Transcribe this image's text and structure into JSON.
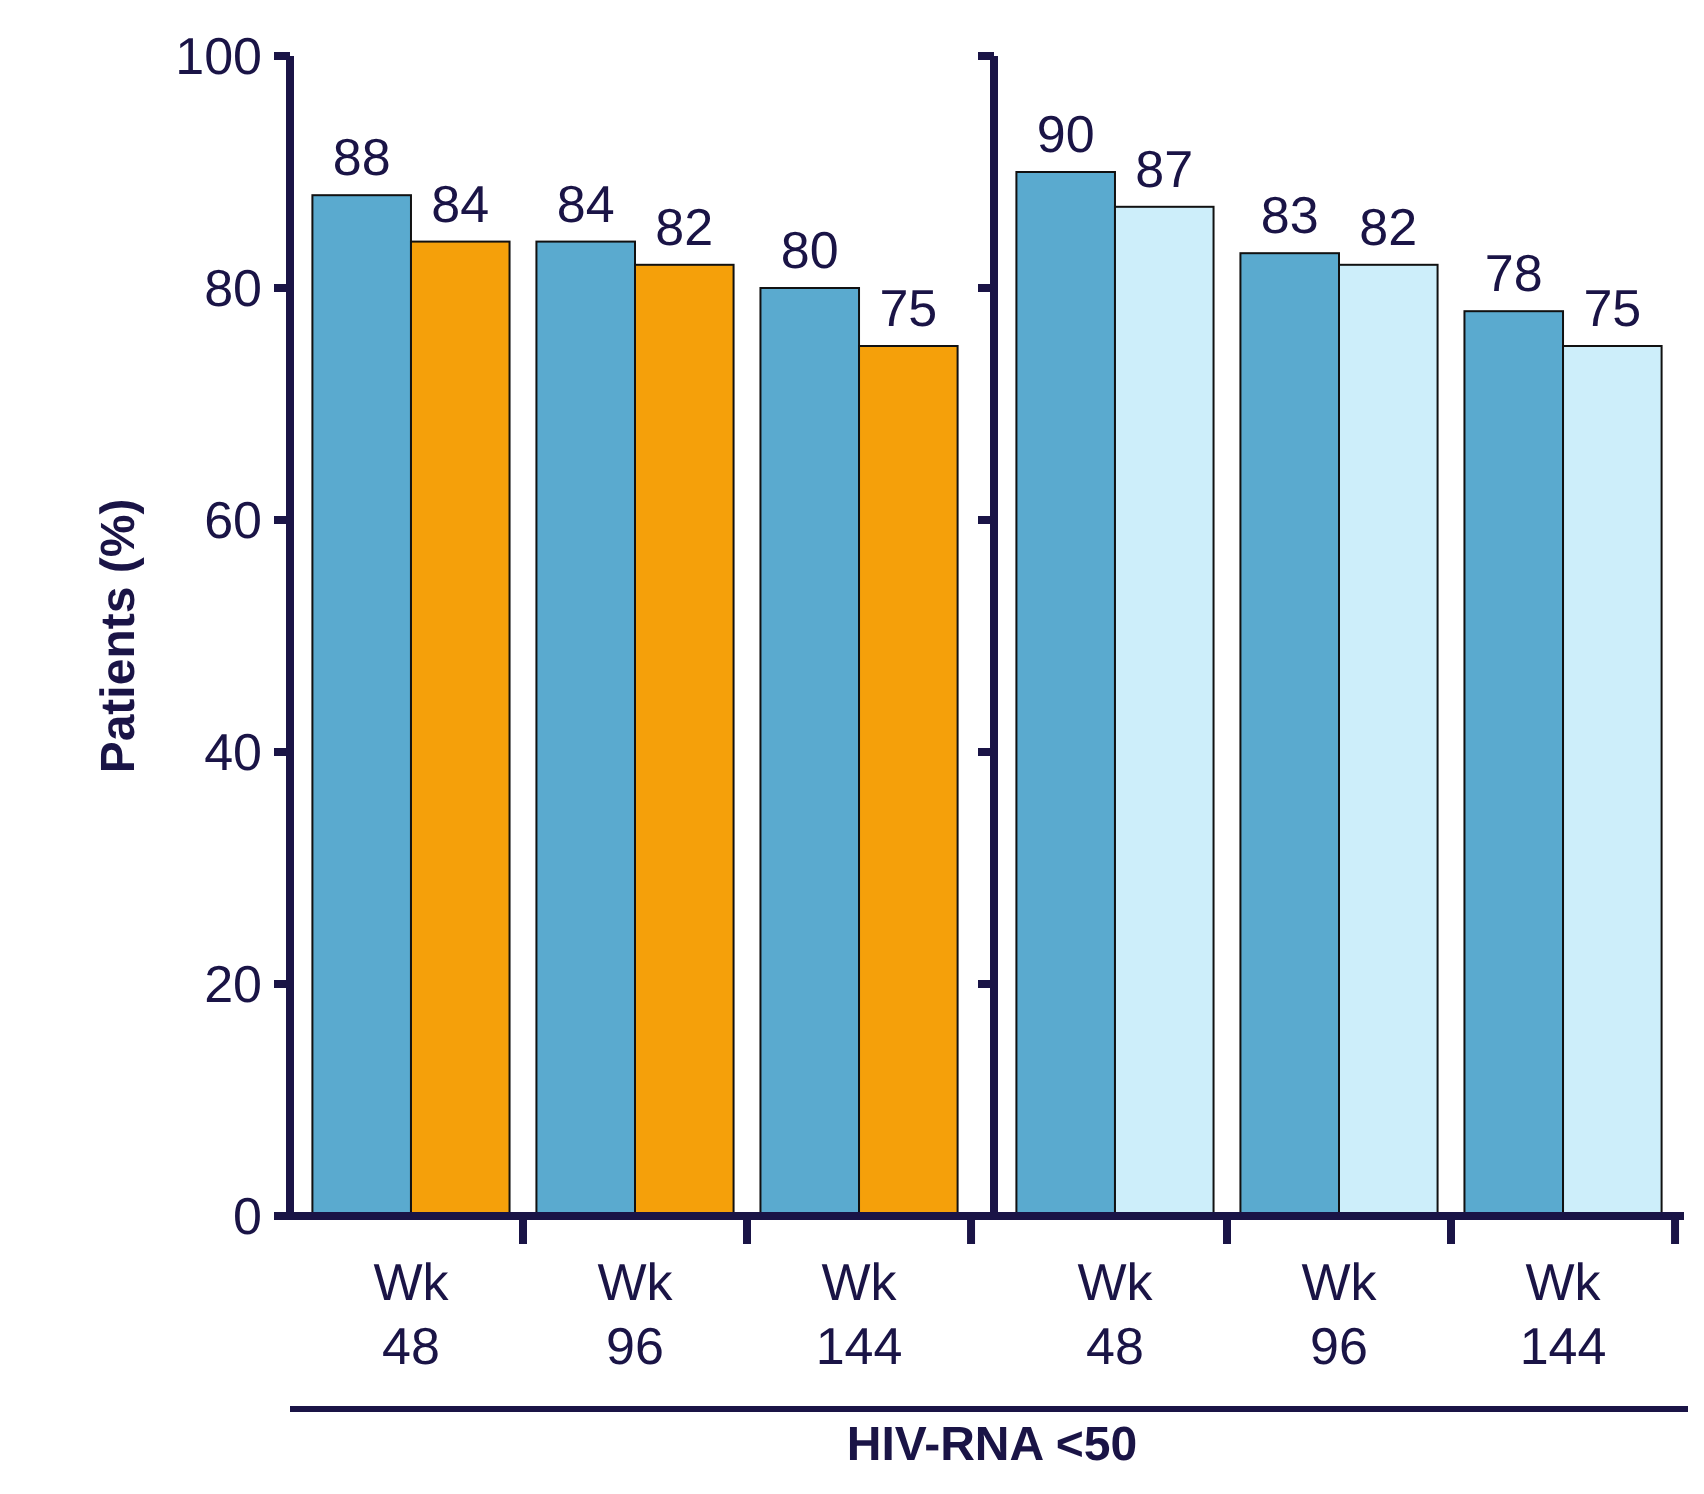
{
  "chart_data": [
    {
      "type": "bar",
      "ylabel": "Patients (%)",
      "categories": [
        "Wk 48",
        "Wk 96",
        "Wk 144"
      ],
      "series": [
        {
          "color": "#5aaacf",
          "values": [
            88,
            84,
            80
          ]
        },
        {
          "color": "#f5a00a",
          "values": [
            84,
            82,
            75
          ]
        }
      ],
      "ylim": [
        0,
        100
      ],
      "yticks": [
        0,
        20,
        40,
        60,
        80,
        100
      ],
      "data_labels": true
    },
    {
      "type": "bar",
      "categories": [
        "Wk 48",
        "Wk 96",
        "Wk 144"
      ],
      "series": [
        {
          "color": "#5aaacf",
          "values": [
            90,
            83,
            78
          ]
        },
        {
          "color": "#cdeefa",
          "values": [
            87,
            82,
            75
          ]
        }
      ],
      "ylim": [
        0,
        100
      ],
      "yticks": [
        {
          "value": 0,
          "label": null
        },
        {
          "value": 20,
          "label": null
        },
        {
          "value": 40,
          "label": null
        },
        {
          "value": 60,
          "label": null
        },
        {
          "value": 80,
          "label": null
        },
        {
          "value": 100,
          "label": null
        }
      ],
      "tick_labels": "x",
      "data_labels": true,
      "annotations": [
        "HIV-RNA <50"
      ]
    }
  ]
}
